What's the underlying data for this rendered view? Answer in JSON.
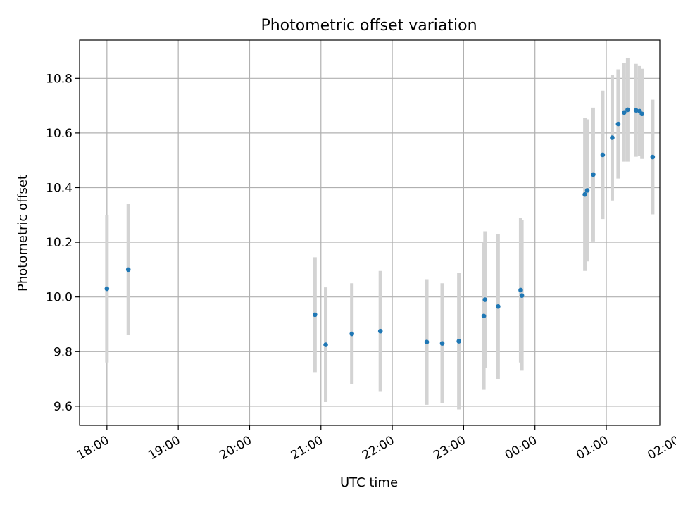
{
  "chart_data": {
    "type": "scatter",
    "title": "Photometric offset variation",
    "xlabel": "UTC time",
    "ylabel": "Photometric offset",
    "x_ticks": [
      "18:00",
      "19:00",
      "20:00",
      "21:00",
      "22:00",
      "23:00",
      "00:00",
      "01:00",
      "02:00"
    ],
    "y_ticks": [
      "9.6",
      "9.8",
      "10.0",
      "10.2",
      "10.4",
      "10.6",
      "10.8"
    ],
    "xlim": [
      "17:37",
      "01:45"
    ],
    "ylim": [
      9.53,
      10.94
    ],
    "grid": true,
    "series": [
      {
        "color": "#1f77b4",
        "errorbar_color": "#d3d3d3",
        "points": [
          {
            "x": "18:00",
            "y": 10.03,
            "err": 0.27
          },
          {
            "x": "18:18",
            "y": 10.1,
            "err": 0.24
          },
          {
            "x": "20:55",
            "y": 9.935,
            "err": 0.21
          },
          {
            "x": "21:04",
            "y": 9.825,
            "err": 0.21
          },
          {
            "x": "21:26",
            "y": 9.865,
            "err": 0.185
          },
          {
            "x": "21:50",
            "y": 9.875,
            "err": 0.22
          },
          {
            "x": "22:29",
            "y": 9.835,
            "err": 0.23
          },
          {
            "x": "22:42",
            "y": 9.83,
            "err": 0.22
          },
          {
            "x": "22:56",
            "y": 9.838,
            "err": 0.25
          },
          {
            "x": "23:17",
            "y": 9.93,
            "err": 0.27
          },
          {
            "x": "23:18",
            "y": 9.99,
            "err": 0.25
          },
          {
            "x": "23:29",
            "y": 9.965,
            "err": 0.265
          },
          {
            "x": "23:48",
            "y": 10.025,
            "err": 0.265
          },
          {
            "x": "23:49",
            "y": 10.005,
            "err": 0.275
          },
          {
            "x": "00:42",
            "y": 10.375,
            "err": 0.28
          },
          {
            "x": "00:44",
            "y": 10.39,
            "err": 0.26
          },
          {
            "x": "00:49",
            "y": 10.448,
            "err": 0.245
          },
          {
            "x": "00:57",
            "y": 10.52,
            "err": 0.235
          },
          {
            "x": "01:05",
            "y": 10.583,
            "err": 0.23
          },
          {
            "x": "01:10",
            "y": 10.633,
            "err": 0.2
          },
          {
            "x": "01:15",
            "y": 10.675,
            "err": 0.18
          },
          {
            "x": "01:18",
            "y": 10.685,
            "err": 0.19
          },
          {
            "x": "01:25",
            "y": 10.683,
            "err": 0.17
          },
          {
            "x": "01:28",
            "y": 10.68,
            "err": 0.165
          },
          {
            "x": "01:30",
            "y": 10.67,
            "err": 0.165
          },
          {
            "x": "01:39",
            "y": 10.512,
            "err": 0.21
          }
        ]
      }
    ]
  }
}
